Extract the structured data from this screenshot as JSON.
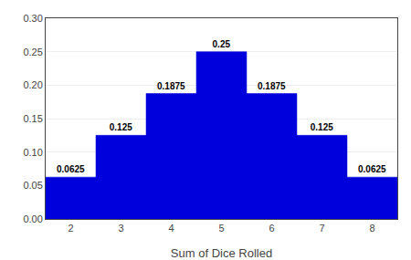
{
  "chart_data": {
    "type": "bar",
    "x": [
      2,
      3,
      4,
      5,
      6,
      7,
      8
    ],
    "values": [
      0.0625,
      0.125,
      0.1875,
      0.25,
      0.1875,
      0.125,
      0.0625
    ],
    "color": "#0000DD",
    "xlabel": "Sum of Dice Rolled",
    "xlim": [
      1.5,
      8.5
    ],
    "xticks": [
      2,
      3,
      4,
      5,
      6,
      7,
      8
    ],
    "ylim": [
      0,
      0.3
    ],
    "yticks": [
      {
        "value": 0,
        "label": "0.00"
      },
      {
        "value": 0.05,
        "label": "0.05"
      },
      {
        "value": 0.1,
        "label": "0.10"
      },
      {
        "value": 0.15,
        "label": "0.15"
      },
      {
        "value": 0.2,
        "label": "0.20"
      },
      {
        "value": 0.25,
        "label": "0.25"
      },
      {
        "value": 0.3,
        "label": "0.30"
      }
    ],
    "grid": true,
    "data_labels": true
  }
}
